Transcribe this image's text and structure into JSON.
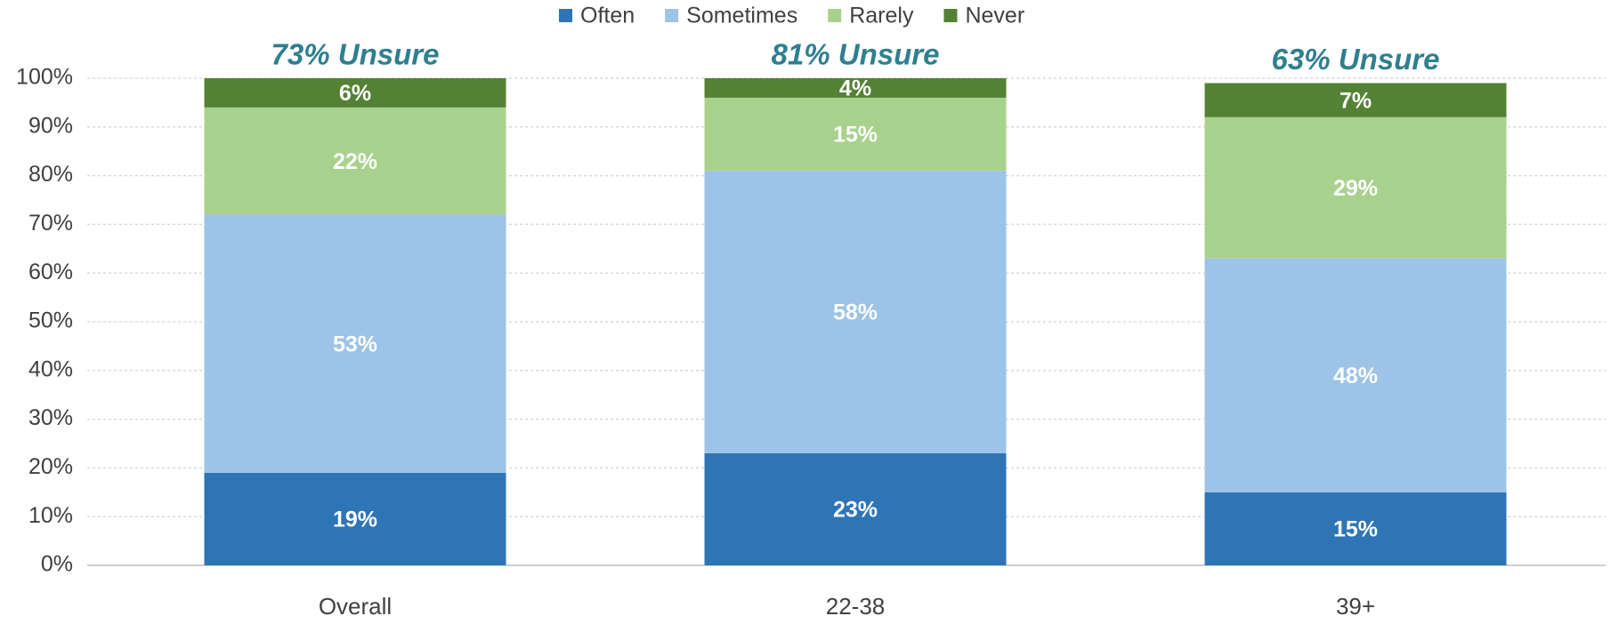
{
  "chart_data": {
    "type": "stacked_bar",
    "categories": [
      "Overall",
      "22-38",
      "39+"
    ],
    "annotations": [
      "73% Unsure",
      "81% Unsure",
      "63% Unsure"
    ],
    "series": [
      {
        "name": "Often",
        "color": "#2e75b6",
        "values": [
          19,
          23,
          15
        ],
        "value_labels": [
          "19%",
          "23%",
          "15%"
        ]
      },
      {
        "name": "Sometimes",
        "color": "#9dc3e6",
        "values": [
          53,
          58,
          48
        ],
        "value_labels": [
          "53%",
          "58%",
          "48%"
        ]
      },
      {
        "name": "Rarely",
        "color": "#a9d18e",
        "values": [
          22,
          15,
          29
        ],
        "value_labels": [
          "22%",
          "15%",
          "29%"
        ]
      },
      {
        "name": "Never",
        "color": "#548235",
        "values": [
          6,
          4,
          7
        ],
        "value_labels": [
          "6%",
          "4%",
          "7%"
        ]
      }
    ],
    "ylim": [
      0,
      100
    ],
    "yticks": [
      {
        "value": 0,
        "label": "0%"
      },
      {
        "value": 10,
        "label": "10%"
      },
      {
        "value": 20,
        "label": "20%"
      },
      {
        "value": 30,
        "label": "30%"
      },
      {
        "value": 40,
        "label": "40%"
      },
      {
        "value": 50,
        "label": "50%"
      },
      {
        "value": 60,
        "label": "60%"
      },
      {
        "value": 70,
        "label": "70%"
      },
      {
        "value": 80,
        "label": "80%"
      },
      {
        "value": 90,
        "label": "90%"
      },
      {
        "value": 100,
        "label": "100%"
      }
    ],
    "grid": true,
    "legend": "top"
  }
}
